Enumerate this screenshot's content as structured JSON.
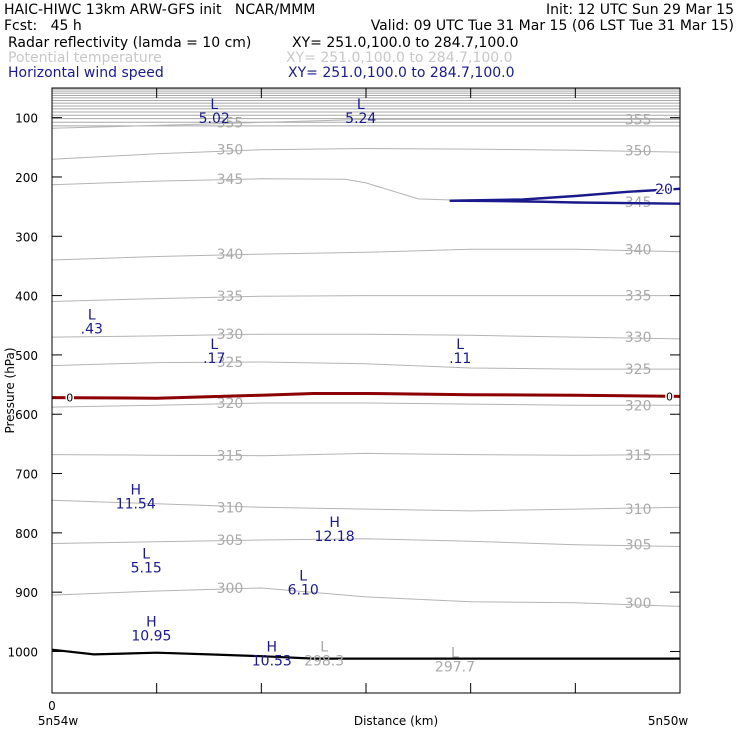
{
  "header": {
    "line1_left": "HAIC-HIWC 13km ARW-GFS init   NCAR/MMM",
    "line1_right": "Init: 12 UTC Sun 29 Mar 15",
    "line2_left": "Fcst:   45 h",
    "line2_right": "Valid: 09 UTC Tue 31 Mar 15 (06 LST Tue 31 Mar 15)",
    "field1_name": "Radar reflectivity (lamda = 10 cm)",
    "field1_xy": "XY= 251.0,100.0 to 284.7,100.0",
    "field2_name": "Potential temperature",
    "field2_xy": "XY= 251.0,100.0 to 284.7,100.0",
    "field3_name": "Horizontal wind speed",
    "field3_xy": "XY= 251.0,100.0 to 284.7,100.0"
  },
  "colors": {
    "theta": "#b4b4b4",
    "theta_label": "#aaaaaa",
    "wind": "#1a1a8c",
    "freezing": "#8b0000",
    "terrain": "#000000",
    "top_fill": "#a8a8a8"
  },
  "chart_data": {
    "type": "line",
    "title": "",
    "xlabel": "Distance (km)",
    "ylabel": "Pressure (hPa)",
    "x_ticks": [
      "0"
    ],
    "x_endpoints": [
      "5n54w",
      "5n50w"
    ],
    "y_ticks": [
      100,
      200,
      300,
      400,
      500,
      600,
      700,
      800,
      900,
      1000
    ],
    "ylim": [
      1070,
      50
    ],
    "xlim": [
      0,
      6
    ],
    "series": [
      {
        "kind": "theta",
        "level": 355,
        "label": "355",
        "points": [
          [
            0,
            118
          ],
          [
            1,
            113
          ],
          [
            2,
            108
          ],
          [
            3,
            103
          ],
          [
            4,
            103
          ],
          [
            5,
            103
          ],
          [
            6,
            103
          ]
        ]
      },
      {
        "kind": "theta",
        "level": 350,
        "label": "350",
        "points": [
          [
            0,
            170
          ],
          [
            1,
            161
          ],
          [
            2,
            154
          ],
          [
            3,
            152
          ],
          [
            4,
            153
          ],
          [
            5,
            155
          ],
          [
            6,
            158
          ]
        ]
      },
      {
        "kind": "theta",
        "level": 345,
        "label": "345",
        "points": [
          [
            0,
            213
          ],
          [
            1,
            207
          ],
          [
            2,
            203
          ],
          [
            2.8,
            204
          ],
          [
            3,
            210
          ],
          [
            3.5,
            237
          ],
          [
            4.5,
            243
          ],
          [
            5,
            242
          ],
          [
            6,
            244
          ]
        ]
      },
      {
        "kind": "theta",
        "level": 340,
        "label": "340",
        "points": [
          [
            0,
            340
          ],
          [
            1,
            334
          ],
          [
            2,
            330
          ],
          [
            3,
            327
          ],
          [
            4,
            322
          ],
          [
            5,
            322
          ],
          [
            6,
            326
          ]
        ]
      },
      {
        "kind": "theta",
        "level": 335,
        "label": "335",
        "points": [
          [
            0,
            410
          ],
          [
            1,
            405
          ],
          [
            2,
            401
          ],
          [
            3,
            400
          ],
          [
            4,
            400
          ],
          [
            5,
            400
          ],
          [
            6,
            400
          ]
        ]
      },
      {
        "kind": "theta",
        "level": 330,
        "label": "330",
        "points": [
          [
            0,
            470
          ],
          [
            1,
            468
          ],
          [
            2,
            465
          ],
          [
            3,
            465
          ],
          [
            4,
            467
          ],
          [
            5,
            470
          ],
          [
            6,
            473
          ]
        ]
      },
      {
        "kind": "theta",
        "level": 325,
        "label": "325",
        "points": [
          [
            0,
            518
          ],
          [
            1,
            513
          ],
          [
            2,
            512
          ],
          [
            3,
            515
          ],
          [
            4,
            522
          ],
          [
            5,
            524
          ],
          [
            6,
            524
          ]
        ]
      },
      {
        "kind": "theta",
        "level": 320,
        "label": "320",
        "points": [
          [
            0,
            588
          ],
          [
            1,
            585
          ],
          [
            2,
            581
          ],
          [
            3,
            581
          ],
          [
            4,
            583
          ],
          [
            5,
            585
          ],
          [
            6,
            585
          ]
        ]
      },
      {
        "kind": "theta",
        "level": 315,
        "label": "315",
        "points": [
          [
            0,
            668
          ],
          [
            1,
            669
          ],
          [
            2,
            670
          ],
          [
            3,
            666
          ],
          [
            4,
            668
          ],
          [
            5,
            669
          ],
          [
            6,
            668
          ]
        ]
      },
      {
        "kind": "theta",
        "level": 310,
        "label": "310",
        "points": [
          [
            0,
            745
          ],
          [
            1,
            751
          ],
          [
            2,
            757
          ],
          [
            3,
            760
          ],
          [
            4,
            763
          ],
          [
            5,
            760
          ],
          [
            6,
            757
          ]
        ]
      },
      {
        "kind": "theta",
        "level": 305,
        "label": "305",
        "points": [
          [
            0,
            818
          ],
          [
            1,
            815
          ],
          [
            2,
            812
          ],
          [
            3,
            810
          ],
          [
            4,
            814
          ],
          [
            5,
            820
          ],
          [
            6,
            823
          ]
        ]
      },
      {
        "kind": "theta",
        "level": 300,
        "label": "300",
        "points": [
          [
            0,
            905
          ],
          [
            1,
            898
          ],
          [
            2,
            893
          ],
          [
            3,
            908
          ],
          [
            4,
            916
          ],
          [
            5,
            918
          ],
          [
            6,
            924
          ]
        ]
      },
      {
        "kind": "freezing",
        "level": 0,
        "label": "0",
        "points": [
          [
            0,
            572
          ],
          [
            1,
            573
          ],
          [
            2,
            568
          ],
          [
            2.5,
            565
          ],
          [
            3,
            565
          ],
          [
            4,
            567
          ],
          [
            5,
            568
          ],
          [
            6,
            570
          ]
        ]
      },
      {
        "kind": "wind",
        "level": 20,
        "label": "20",
        "points": [
          [
            3.8,
            240
          ],
          [
            4.5,
            238
          ],
          [
            5,
            232
          ],
          [
            5.5,
            225
          ],
          [
            6,
            220
          ]
        ]
      },
      {
        "kind": "wind",
        "level": 20,
        "label": "",
        "points": [
          [
            3.8,
            240
          ],
          [
            4.5,
            241
          ],
          [
            5,
            243
          ],
          [
            6,
            245
          ]
        ]
      },
      {
        "kind": "terrain",
        "level": null,
        "label": "",
        "points": [
          [
            0,
            997
          ],
          [
            0.4,
            1005
          ],
          [
            1,
            1002
          ],
          [
            1.5,
            1005
          ],
          [
            2,
            1008
          ],
          [
            2.5,
            1012
          ],
          [
            6,
            1012
          ]
        ]
      }
    ],
    "annotations": [
      {
        "letter": "L",
        "value": "5.02",
        "x": 1.55,
        "p": 85,
        "color": "wind"
      },
      {
        "letter": "L",
        "value": "5.24",
        "x": 2.95,
        "p": 85,
        "color": "wind"
      },
      {
        "letter": "L",
        "value": ".43",
        "x": 0.38,
        "p": 440,
        "color": "wind"
      },
      {
        "letter": "L",
        "value": ".17",
        "x": 1.55,
        "p": 490,
        "color": "wind"
      },
      {
        "letter": "L",
        "value": ".11",
        "x": 3.9,
        "p": 490,
        "color": "wind"
      },
      {
        "letter": "H",
        "value": "11.54",
        "x": 0.8,
        "p": 735,
        "color": "wind"
      },
      {
        "letter": "H",
        "value": "12.18",
        "x": 2.7,
        "p": 790,
        "color": "wind"
      },
      {
        "letter": "L",
        "value": "5.15",
        "x": 0.9,
        "p": 843,
        "color": "wind"
      },
      {
        "letter": "L",
        "value": "6.10",
        "x": 2.4,
        "p": 880,
        "color": "wind"
      },
      {
        "letter": "H",
        "value": "10.95",
        "x": 0.95,
        "p": 958,
        "color": "wind"
      },
      {
        "letter": "H",
        "value": "10.53",
        "x": 2.1,
        "p": 1000,
        "color": "wind"
      },
      {
        "letter": "L",
        "value": "298.3",
        "x": 2.6,
        "p": 1000,
        "color": "theta_label"
      },
      {
        "letter": "L",
        "value": "297.7",
        "x": 3.85,
        "p": 1010,
        "color": "theta_label"
      }
    ]
  }
}
